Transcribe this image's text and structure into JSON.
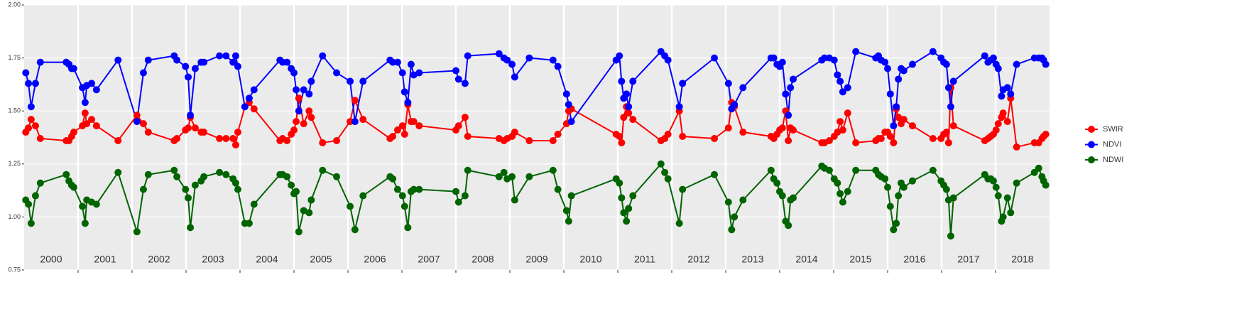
{
  "chart_data": {
    "type": "line",
    "x": [
      2000.03,
      2000.08,
      2000.13,
      2000.21,
      2000.3,
      2000.78,
      2000.83,
      2000.88,
      2000.92,
      2001.08,
      2001.13,
      2001.16,
      2001.25,
      2001.34,
      2001.74,
      2002.09,
      2002.21,
      2002.3,
      2002.78,
      2002.83,
      2002.99,
      2003.04,
      2003.08,
      2003.17,
      2003.28,
      2003.33,
      2003.62,
      2003.74,
      2003.87,
      2003.92,
      2003.96,
      2004.09,
      2004.17,
      2004.26,
      2004.74,
      2004.79,
      2004.87,
      2004.95,
      2005.0,
      2005.04,
      2005.09,
      2005.18,
      2005.28,
      2005.32,
      2005.53,
      2005.79,
      2006.04,
      2006.13,
      2006.28,
      2006.78,
      2006.83,
      2006.92,
      2007.01,
      2007.05,
      2007.11,
      2007.17,
      2007.22,
      2007.32,
      2008.0,
      2008.05,
      2008.17,
      2008.22,
      2008.8,
      2008.89,
      2008.95,
      2009.04,
      2009.09,
      2009.36,
      2009.8,
      2009.89,
      2010.05,
      2010.09,
      2010.14,
      2010.97,
      2011.03,
      2011.07,
      2011.11,
      2011.16,
      2011.2,
      2011.28,
      2011.8,
      2011.87,
      2011.93,
      2012.14,
      2012.2,
      2012.79,
      2013.05,
      2013.11,
      2013.16,
      2013.32,
      2013.84,
      2013.89,
      2013.95,
      2014.0,
      2014.05,
      2014.11,
      2014.16,
      2014.2,
      2014.25,
      2014.78,
      2014.83,
      2014.92,
      2015.01,
      2015.07,
      2015.12,
      2015.17,
      2015.26,
      2015.41,
      2015.78,
      2015.83,
      2015.88,
      2015.95,
      2016.0,
      2016.05,
      2016.11,
      2016.16,
      2016.2,
      2016.25,
      2016.3,
      2016.46,
      2016.84,
      2016.99,
      2017.04,
      2017.09,
      2017.13,
      2017.17,
      2017.22,
      2017.8,
      2017.86,
      2017.91,
      2017.96,
      2018.01,
      2018.05,
      2018.11,
      2018.14,
      2018.22,
      2018.28,
      2018.39,
      2018.72,
      2018.8,
      2018.86,
      2018.89,
      2018.93
    ],
    "series": [
      {
        "name": "SWIR",
        "color": "#ff0000",
        "values": [
          1.4,
          1.42,
          1.46,
          1.43,
          1.37,
          1.36,
          1.36,
          1.38,
          1.4,
          1.43,
          1.49,
          1.44,
          1.46,
          1.43,
          1.36,
          1.48,
          1.44,
          1.4,
          1.36,
          1.37,
          1.41,
          1.42,
          1.47,
          1.42,
          1.4,
          1.4,
          1.37,
          1.37,
          1.37,
          1.34,
          1.4,
          1.52,
          1.54,
          1.51,
          1.36,
          1.37,
          1.36,
          1.39,
          1.41,
          1.45,
          1.56,
          1.44,
          1.5,
          1.47,
          1.35,
          1.36,
          1.45,
          1.55,
          1.46,
          1.37,
          1.38,
          1.41,
          1.43,
          1.39,
          1.53,
          1.45,
          1.45,
          1.43,
          1.41,
          1.43,
          1.47,
          1.38,
          1.37,
          1.36,
          1.37,
          1.38,
          1.4,
          1.36,
          1.36,
          1.39,
          1.44,
          1.5,
          1.51,
          1.39,
          1.38,
          1.35,
          1.47,
          1.52,
          1.49,
          1.46,
          1.36,
          1.37,
          1.39,
          1.5,
          1.38,
          1.37,
          1.42,
          1.54,
          1.52,
          1.4,
          1.38,
          1.37,
          1.39,
          1.41,
          1.42,
          1.5,
          1.36,
          1.42,
          1.41,
          1.35,
          1.35,
          1.36,
          1.38,
          1.4,
          1.45,
          1.41,
          1.49,
          1.35,
          1.36,
          1.37,
          1.37,
          1.4,
          1.4,
          1.38,
          1.35,
          1.51,
          1.47,
          1.44,
          1.46,
          1.43,
          1.37,
          1.37,
          1.39,
          1.4,
          1.35,
          1.61,
          1.43,
          1.36,
          1.37,
          1.38,
          1.39,
          1.41,
          1.44,
          1.47,
          1.49,
          1.45,
          1.56,
          1.33,
          1.35,
          1.35,
          1.37,
          1.38,
          1.39
        ]
      },
      {
        "name": "NDVI",
        "color": "#0000ff",
        "values": [
          1.68,
          1.63,
          1.52,
          1.63,
          1.73,
          1.73,
          1.72,
          1.7,
          1.7,
          1.61,
          1.54,
          1.62,
          1.63,
          1.6,
          1.74,
          1.45,
          1.68,
          1.74,
          1.76,
          1.74,
          1.71,
          1.66,
          1.48,
          1.7,
          1.73,
          1.73,
          1.76,
          1.76,
          1.73,
          1.76,
          1.71,
          1.52,
          1.56,
          1.6,
          1.74,
          1.73,
          1.73,
          1.7,
          1.68,
          1.6,
          1.5,
          1.6,
          1.58,
          1.64,
          1.76,
          1.68,
          1.64,
          1.45,
          1.64,
          1.74,
          1.73,
          1.73,
          1.68,
          1.59,
          1.54,
          1.72,
          1.67,
          1.68,
          1.69,
          1.65,
          1.63,
          1.76,
          1.77,
          1.75,
          1.74,
          1.72,
          1.66,
          1.75,
          1.74,
          1.71,
          1.58,
          1.53,
          1.45,
          1.74,
          1.76,
          1.64,
          1.56,
          1.58,
          1.52,
          1.64,
          1.78,
          1.76,
          1.74,
          1.52,
          1.63,
          1.75,
          1.63,
          1.51,
          1.53,
          1.61,
          1.75,
          1.75,
          1.72,
          1.71,
          1.73,
          1.58,
          1.48,
          1.61,
          1.65,
          1.74,
          1.75,
          1.75,
          1.74,
          1.67,
          1.64,
          1.59,
          1.61,
          1.78,
          1.75,
          1.76,
          1.74,
          1.73,
          1.7,
          1.58,
          1.43,
          1.52,
          1.65,
          1.7,
          1.69,
          1.72,
          1.78,
          1.75,
          1.73,
          1.72,
          1.61,
          1.52,
          1.64,
          1.76,
          1.73,
          1.74,
          1.75,
          1.72,
          1.7,
          1.57,
          1.6,
          1.61,
          1.58,
          1.72,
          1.75,
          1.75,
          1.75,
          1.74,
          1.72
        ]
      },
      {
        "name": "NDWI",
        "color": "#006400",
        "values": [
          1.08,
          1.06,
          0.97,
          1.1,
          1.16,
          1.2,
          1.17,
          1.15,
          1.14,
          1.05,
          0.97,
          1.08,
          1.07,
          1.06,
          1.21,
          0.93,
          1.13,
          1.2,
          1.22,
          1.19,
          1.13,
          1.09,
          0.95,
          1.15,
          1.17,
          1.19,
          1.21,
          1.2,
          1.18,
          1.16,
          1.13,
          0.97,
          0.97,
          1.06,
          1.2,
          1.2,
          1.19,
          1.15,
          1.11,
          1.12,
          0.93,
          1.03,
          1.02,
          1.08,
          1.22,
          1.19,
          1.05,
          0.94,
          1.1,
          1.19,
          1.18,
          1.13,
          1.1,
          1.05,
          0.95,
          1.12,
          1.13,
          1.13,
          1.12,
          1.07,
          1.1,
          1.22,
          1.19,
          1.21,
          1.18,
          1.19,
          1.08,
          1.19,
          1.22,
          1.13,
          1.03,
          0.98,
          1.1,
          1.18,
          1.16,
          1.09,
          1.02,
          0.98,
          1.04,
          1.1,
          1.25,
          1.21,
          1.18,
          0.97,
          1.13,
          1.2,
          1.07,
          0.94,
          1.0,
          1.08,
          1.22,
          1.18,
          1.16,
          1.12,
          1.1,
          0.98,
          0.96,
          1.08,
          1.09,
          1.24,
          1.23,
          1.22,
          1.18,
          1.16,
          1.11,
          1.07,
          1.12,
          1.22,
          1.22,
          1.2,
          1.19,
          1.18,
          1.14,
          1.05,
          0.94,
          0.97,
          1.1,
          1.16,
          1.14,
          1.17,
          1.22,
          1.17,
          1.15,
          1.13,
          1.08,
          0.91,
          1.09,
          1.2,
          1.18,
          1.18,
          1.17,
          1.14,
          1.1,
          0.98,
          1.0,
          1.09,
          1.02,
          1.16,
          1.21,
          1.23,
          1.19,
          1.17,
          1.15
        ]
      }
    ],
    "xlim": [
      2000,
      2019
    ],
    "xticks": [
      2001,
      2002,
      2003,
      2004,
      2005,
      2006,
      2007,
      2008,
      2009,
      2010,
      2011,
      2012,
      2013,
      2014,
      2015,
      2016,
      2017,
      2018
    ],
    "year_labels": [
      "2000",
      "2001",
      "2002",
      "2003",
      "2004",
      "2005",
      "2006",
      "2007",
      "2008",
      "2009",
      "2010",
      "2011",
      "2012",
      "2013",
      "2014",
      "2015",
      "2016",
      "2017",
      "2018"
    ],
    "ylim": [
      0.75,
      2.0
    ],
    "yticks": [
      0.75,
      {
        "value": 1.0,
        "label": "1.00"
      },
      1.25,
      {
        "value": 1.5,
        "label": "1.50"
      },
      1.75,
      {
        "value": 2.0,
        "label": "2.00"
      }
    ],
    "grid": true,
    "legend": "right"
  }
}
